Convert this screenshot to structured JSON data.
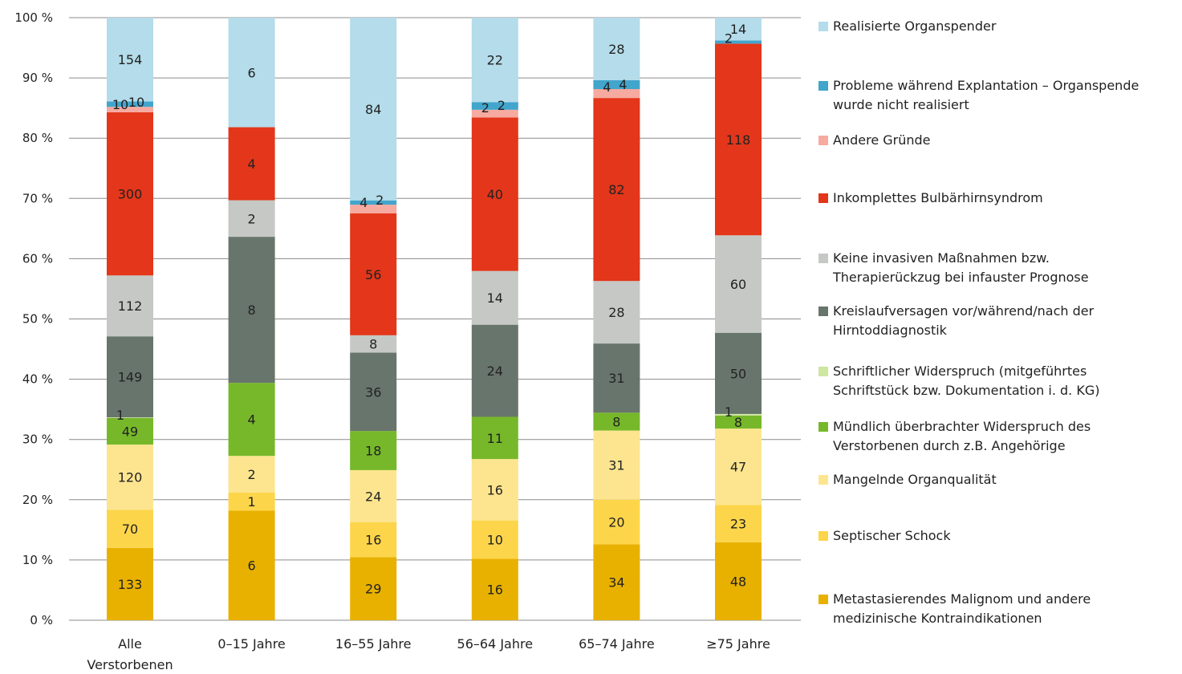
{
  "chart_data": {
    "type": "bar",
    "stacked": "percent",
    "categories": [
      [
        "Alle",
        "Verstorbenen"
      ],
      [
        "0–15 Jahre"
      ],
      [
        "16–55 Jahre"
      ],
      [
        "56–64 Jahre"
      ],
      [
        "65–74 Jahre"
      ],
      [
        "≥75 Jahre"
      ]
    ],
    "y_ticks": [
      "0 %",
      "10 %",
      "20 %",
      "30 %",
      "40 %",
      "50 %",
      "60 %",
      "70 %",
      "80 %",
      "90 %",
      "100 %"
    ],
    "ylim": [
      0,
      100
    ],
    "grid": true,
    "legend_position": "right",
    "series": [
      {
        "name": "Metastasierendes Malignom und andere medizinische Kontraindikationen",
        "color": "#e8b100",
        "values": [
          133,
          6,
          29,
          16,
          34,
          48
        ]
      },
      {
        "name": "Septischer Schock",
        "color": "#fcd54a",
        "values": [
          70,
          1,
          16,
          10,
          20,
          23
        ]
      },
      {
        "name": "Mangelnde Organqualität",
        "color": "#fde58f",
        "values": [
          120,
          2,
          24,
          16,
          31,
          47
        ]
      },
      {
        "name": "Mündlich überbrachter Widerspruch des Verstorbenen durch z.B. Angehörige",
        "color": "#76b82a",
        "values": [
          49,
          4,
          18,
          11,
          8,
          8
        ]
      },
      {
        "name": "Schriftlicher Widerspruch (mitgeführtes Schriftstück bzw. Dokumentation i. d. KG)",
        "color": "#cde6a0",
        "values": [
          1,
          0,
          0,
          0,
          0,
          1
        ]
      },
      {
        "name": "Kreislaufversagen vor/während/nach der Hirntoddiagnostik",
        "color": "#68756c",
        "values": [
          149,
          8,
          36,
          24,
          31,
          50
        ]
      },
      {
        "name": "Keine invasiven Maßnahmen bzw. Therapierückzug bei infauster Prognose",
        "color": "#c5c8c4",
        "values": [
          112,
          2,
          8,
          14,
          28,
          60
        ]
      },
      {
        "name": "Inkomplettes Bulbärhirnsyndrom",
        "color": "#e3361a",
        "values": [
          300,
          4,
          56,
          40,
          82,
          118
        ]
      },
      {
        "name": "Andere Gründe",
        "color": "#f6aaa0",
        "values": [
          10,
          0,
          4,
          2,
          4,
          0
        ]
      },
      {
        "name": "Probleme während Explantation – Organspende wurde nicht realisiert",
        "color": "#42a5cc",
        "values": [
          10,
          0,
          2,
          2,
          4,
          2
        ]
      },
      {
        "name": "Realisierte Organspender",
        "color": "#b4dcea",
        "values": [
          154,
          6,
          84,
          22,
          28,
          14
        ]
      }
    ],
    "legend": [
      {
        "lines": [
          "Realisierte Organspender"
        ],
        "color": "#b4dcea"
      },
      {
        "lines": [
          "Probleme während Explantation – Organspende",
          "wurde nicht realisiert"
        ],
        "color": "#42a5cc"
      },
      {
        "lines": [
          "Andere Gründe"
        ],
        "color": "#f6aaa0"
      },
      {
        "lines": [
          "Inkomplettes Bulbärhirnsyndrom"
        ],
        "color": "#e3361a"
      },
      {
        "lines": [
          "Keine invasiven Maßnahmen bzw.",
          "Therapierückzug bei infauster Prognose"
        ],
        "color": "#c5c8c4"
      },
      {
        "lines": [
          "Kreislaufversagen vor/während/nach der",
          "Hirntoddiagnostik"
        ],
        "color": "#68756c"
      },
      {
        "lines": [
          "Schriftlicher Widerspruch (mitgeführtes",
          "Schriftstück bzw. Dokumentation i. d. KG)"
        ],
        "color": "#cde6a0"
      },
      {
        "lines": [
          "Mündlich überbrachter Widerspruch des",
          "Verstorbenen durch z.B. Angehörige"
        ],
        "color": "#76b82a"
      },
      {
        "lines": [
          "Mangelnde Organqualität"
        ],
        "color": "#fde58f"
      },
      {
        "lines": [
          "Septischer Schock"
        ],
        "color": "#fcd54a"
      },
      {
        "lines": [
          "Metastasierendes Malignom und andere",
          "medizinische Kontraindikationen"
        ],
        "color": "#e8b100"
      }
    ]
  }
}
